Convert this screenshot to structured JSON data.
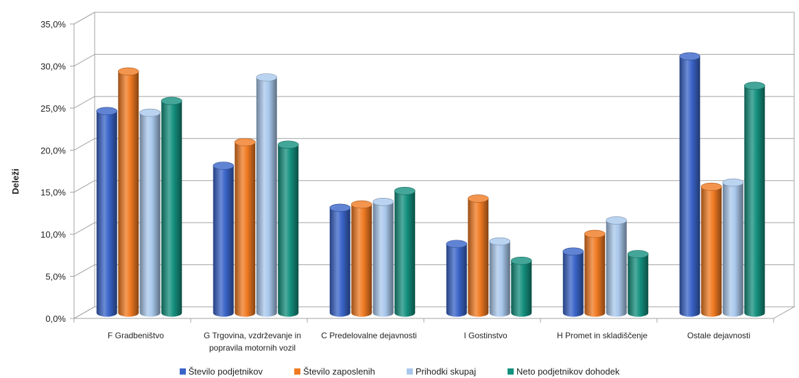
{
  "chart_data": {
    "type": "bar",
    "title": "",
    "xlabel": "",
    "ylabel": "Deleži",
    "ylim": [
      0,
      35
    ],
    "yticks": [
      "0,0%",
      "5,0%",
      "10,0%",
      "15,0%",
      "20,0%",
      "25,0%",
      "30,0%",
      "35,0%"
    ],
    "categories": [
      [
        "F Gradbeništvo"
      ],
      [
        "G Trgovina, vzdrževanje in",
        "popravila motornih vozil"
      ],
      [
        "C Predelovalne dejavnosti"
      ],
      [
        "I Gostinstvo"
      ],
      [
        "H Promet in skladiščenje"
      ],
      [
        "Ostale dejavnosti"
      ]
    ],
    "series": [
      {
        "name": "Število podjetnikov",
        "color": "#3a64c8",
        "values": [
          24.0,
          17.5,
          12.5,
          8.2,
          7.3,
          30.5
        ]
      },
      {
        "name": "Število zaposlenih",
        "color": "#f07a22",
        "values": [
          28.7,
          20.3,
          12.9,
          13.6,
          9.4,
          15.0
        ]
      },
      {
        "name": "Prihodki skupaj",
        "color": "#a9c8ec",
        "values": [
          23.8,
          28.0,
          13.2,
          8.5,
          11.0,
          15.5
        ]
      },
      {
        "name": "Neto podjetnikov dohodek",
        "color": "#14907e",
        "values": [
          25.2,
          20.0,
          14.5,
          6.2,
          7.0,
          27.0
        ]
      }
    ],
    "grid": true,
    "legend_position": "bottom"
  }
}
